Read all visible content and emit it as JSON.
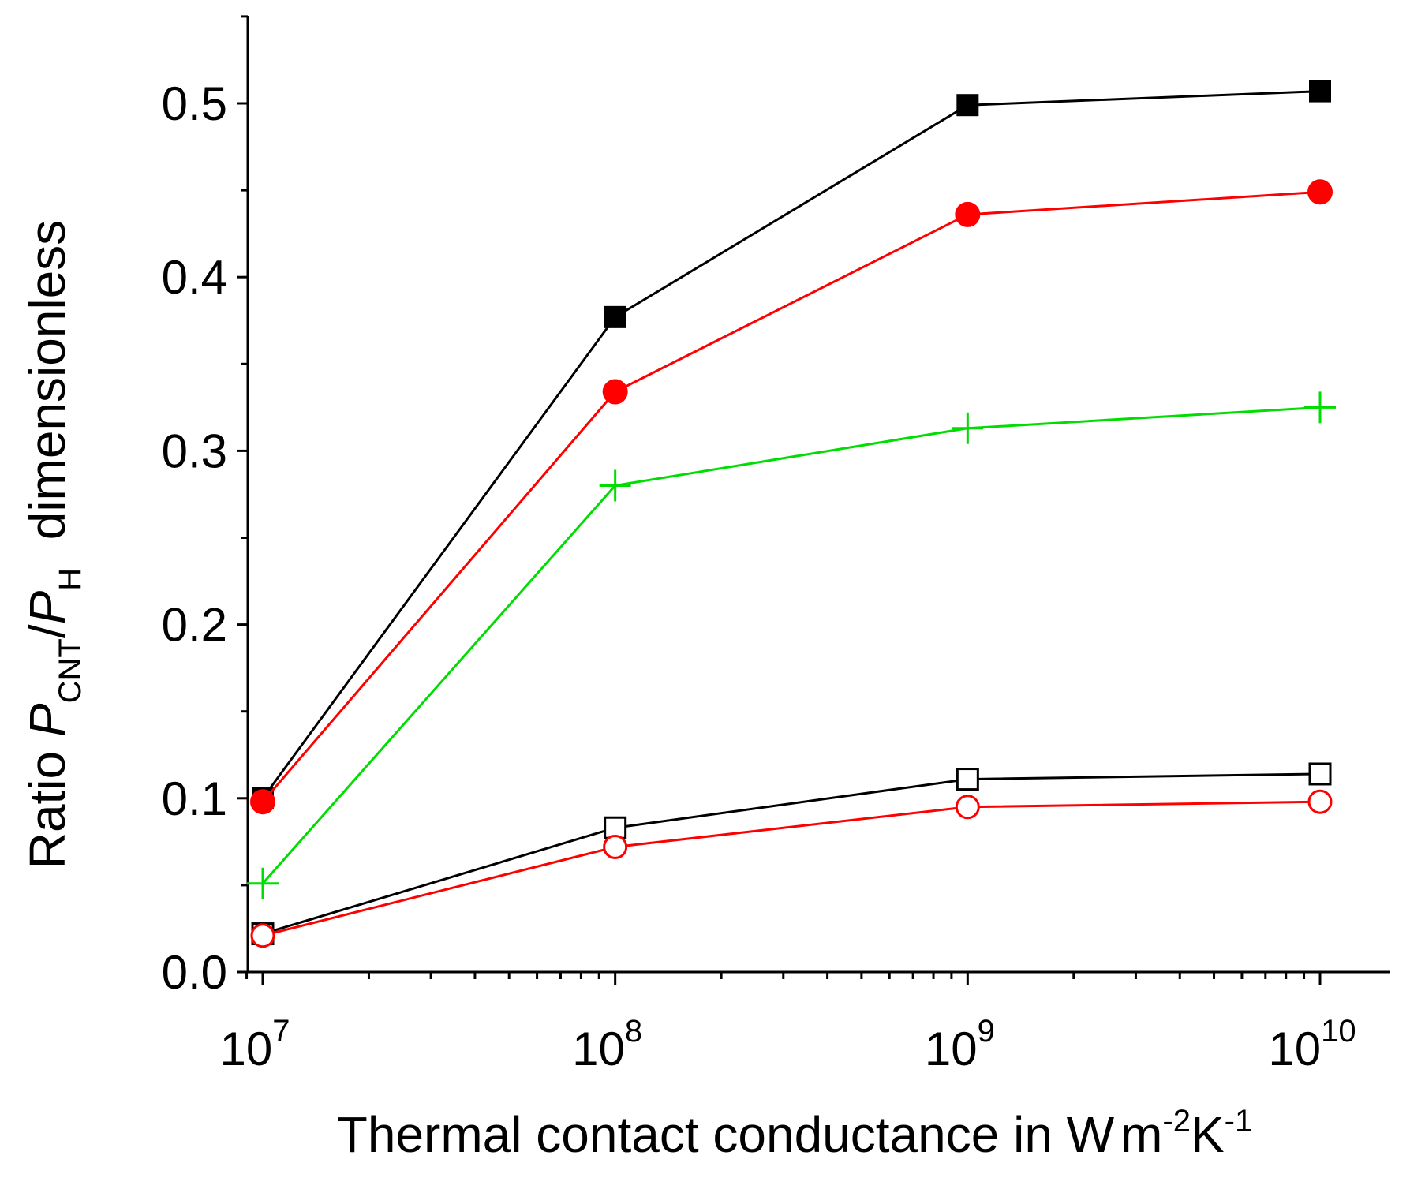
{
  "chart_data": {
    "type": "line",
    "title": "",
    "x_scale": "log",
    "x": [
      10000000,
      100000000,
      1000000000,
      10000000000
    ],
    "x_tick_labels": [
      {
        "base": "10",
        "exp": "7"
      },
      {
        "base": "10",
        "exp": "8"
      },
      {
        "base": "10",
        "exp": "9"
      },
      {
        "base": "10",
        "exp": "10"
      }
    ],
    "xlim": [
      9000000,
      15000000000
    ],
    "ylim": [
      0.0,
      0.55
    ],
    "y_ticks": [
      0.0,
      0.1,
      0.2,
      0.3,
      0.4,
      0.5
    ],
    "y_tick_labels": [
      "0.0",
      "0.1",
      "0.2",
      "0.3",
      "0.4",
      "0.5"
    ],
    "xlabel": {
      "text": "Thermal contact conductance in W",
      "unit_m": "m",
      "exp1": "-2",
      "unit_k": "K",
      "exp2": "-1"
    },
    "ylabel": {
      "prefix": "Ratio ",
      "p1": "P",
      "sub1": "CNT",
      "slash": "/",
      "p2": "P",
      "sub2": "H",
      "suffix": "  dimensionless"
    },
    "grid": false,
    "series": [
      {
        "name": "filled-square",
        "color": "#000000",
        "marker": "square-filled",
        "values": [
          0.1,
          0.377,
          0.499,
          0.507
        ]
      },
      {
        "name": "filled-circle",
        "color": "#ff0000",
        "marker": "circle-filled",
        "values": [
          0.098,
          0.334,
          0.436,
          0.449
        ]
      },
      {
        "name": "plus",
        "color": "#00dd00",
        "marker": "plus",
        "values": [
          0.051,
          0.28,
          0.313,
          0.325
        ]
      },
      {
        "name": "open-square",
        "color": "#000000",
        "marker": "square-open",
        "values": [
          0.022,
          0.083,
          0.111,
          0.114
        ]
      },
      {
        "name": "open-circle",
        "color": "#ff0000",
        "marker": "circle-open",
        "values": [
          0.021,
          0.072,
          0.095,
          0.098
        ]
      }
    ]
  }
}
